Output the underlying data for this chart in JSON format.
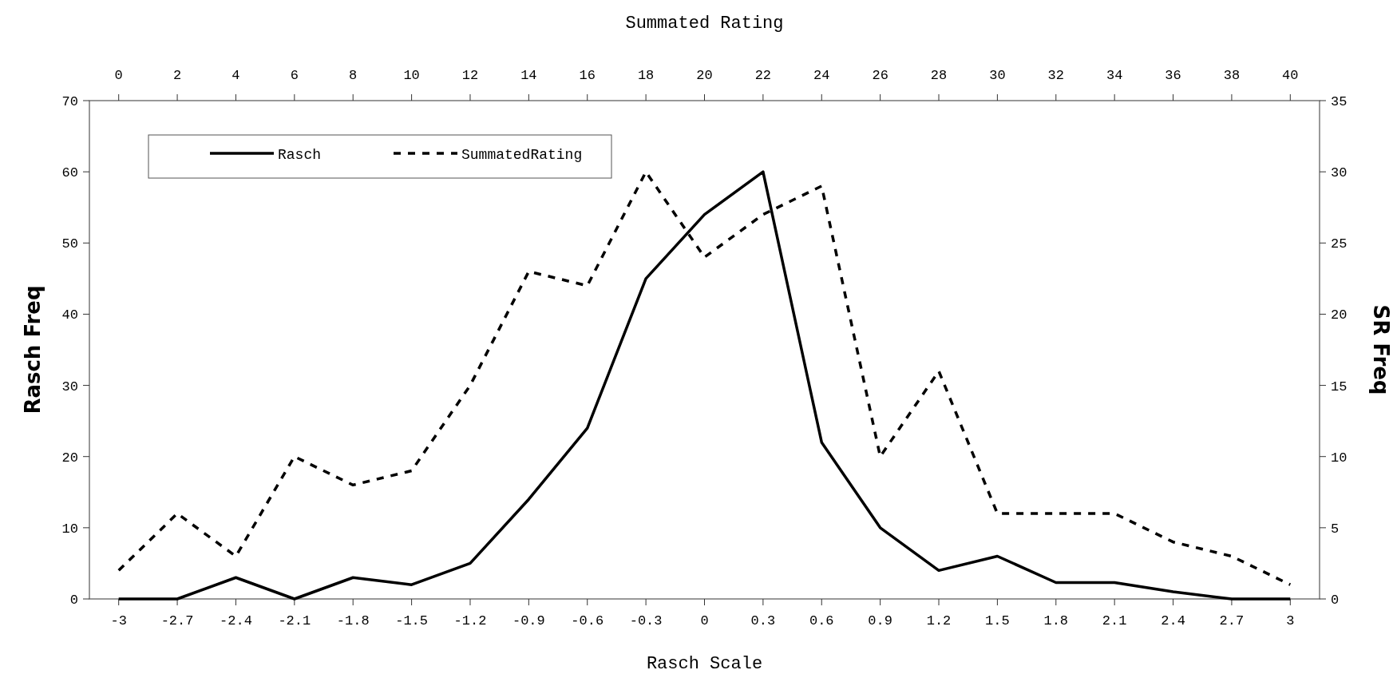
{
  "chart_data": {
    "type": "line",
    "xlabel": "Rasch Scale",
    "ylabel": "Rasch Freq",
    "y2label": "SR Freq",
    "x2label": "Summated Rating",
    "x": [
      -3,
      -2.7,
      -2.4,
      -2.1,
      -1.8,
      -1.5,
      -1.2,
      -0.9,
      -0.6,
      -0.3,
      0,
      0.3,
      0.6,
      0.9,
      1.2,
      1.5,
      1.8,
      2.1,
      2.4,
      2.7,
      3
    ],
    "series": [
      {
        "name": "Rasch",
        "color": "#000000",
        "line_style": "solid",
        "values": [
          0,
          0,
          3,
          0,
          3,
          2,
          5,
          14,
          24,
          45,
          54,
          60,
          22,
          10,
          4,
          6,
          2.3,
          2.3,
          1,
          0,
          0
        ]
      },
      {
        "name": "SummatedRating",
        "color": "#000000",
        "line_style": "dashed",
        "axis": "y2",
        "values": [
          2,
          6,
          3,
          10,
          8,
          9,
          15,
          23,
          22,
          30,
          24,
          27,
          29,
          10,
          16,
          6,
          6,
          6,
          4,
          3,
          1
        ]
      }
    ],
    "xlim": [
      -3.15,
      3.15
    ],
    "xticks": [
      -3,
      {
        "value": -2.7,
        "label": "-2.7"
      },
      {
        "value": -2.4,
        "label": "-2.4"
      },
      {
        "value": -2.1,
        "label": "-2.1"
      },
      {
        "value": -1.8,
        "label": "-1.8"
      },
      {
        "value": -1.5,
        "label": "-1.5"
      },
      {
        "value": -1.2,
        "label": "-1.2"
      },
      {
        "value": -0.9,
        "label": "-0.9"
      },
      {
        "value": -0.6,
        "label": "-0.6"
      },
      {
        "value": -0.3,
        "label": "-0.3"
      },
      0,
      0.3,
      0.6,
      0.9,
      1.2,
      1.5,
      1.8,
      2.1,
      2.4,
      2.7,
      3
    ],
    "x2lim": [
      -1,
      41
    ],
    "x2ticks": [
      0,
      2,
      4,
      6,
      8,
      10,
      12,
      14,
      16,
      18,
      20,
      22,
      24,
      26,
      28,
      30,
      32,
      34,
      36,
      38,
      40
    ],
    "ylim": [
      0,
      70
    ],
    "yticks": [
      0,
      10,
      20,
      30,
      40,
      50,
      60,
      70
    ],
    "y2lim": [
      0,
      35
    ],
    "y2ticks": [
      0,
      5,
      10,
      15,
      20,
      25,
      30,
      35
    ],
    "grid": false,
    "legend": "top left"
  }
}
